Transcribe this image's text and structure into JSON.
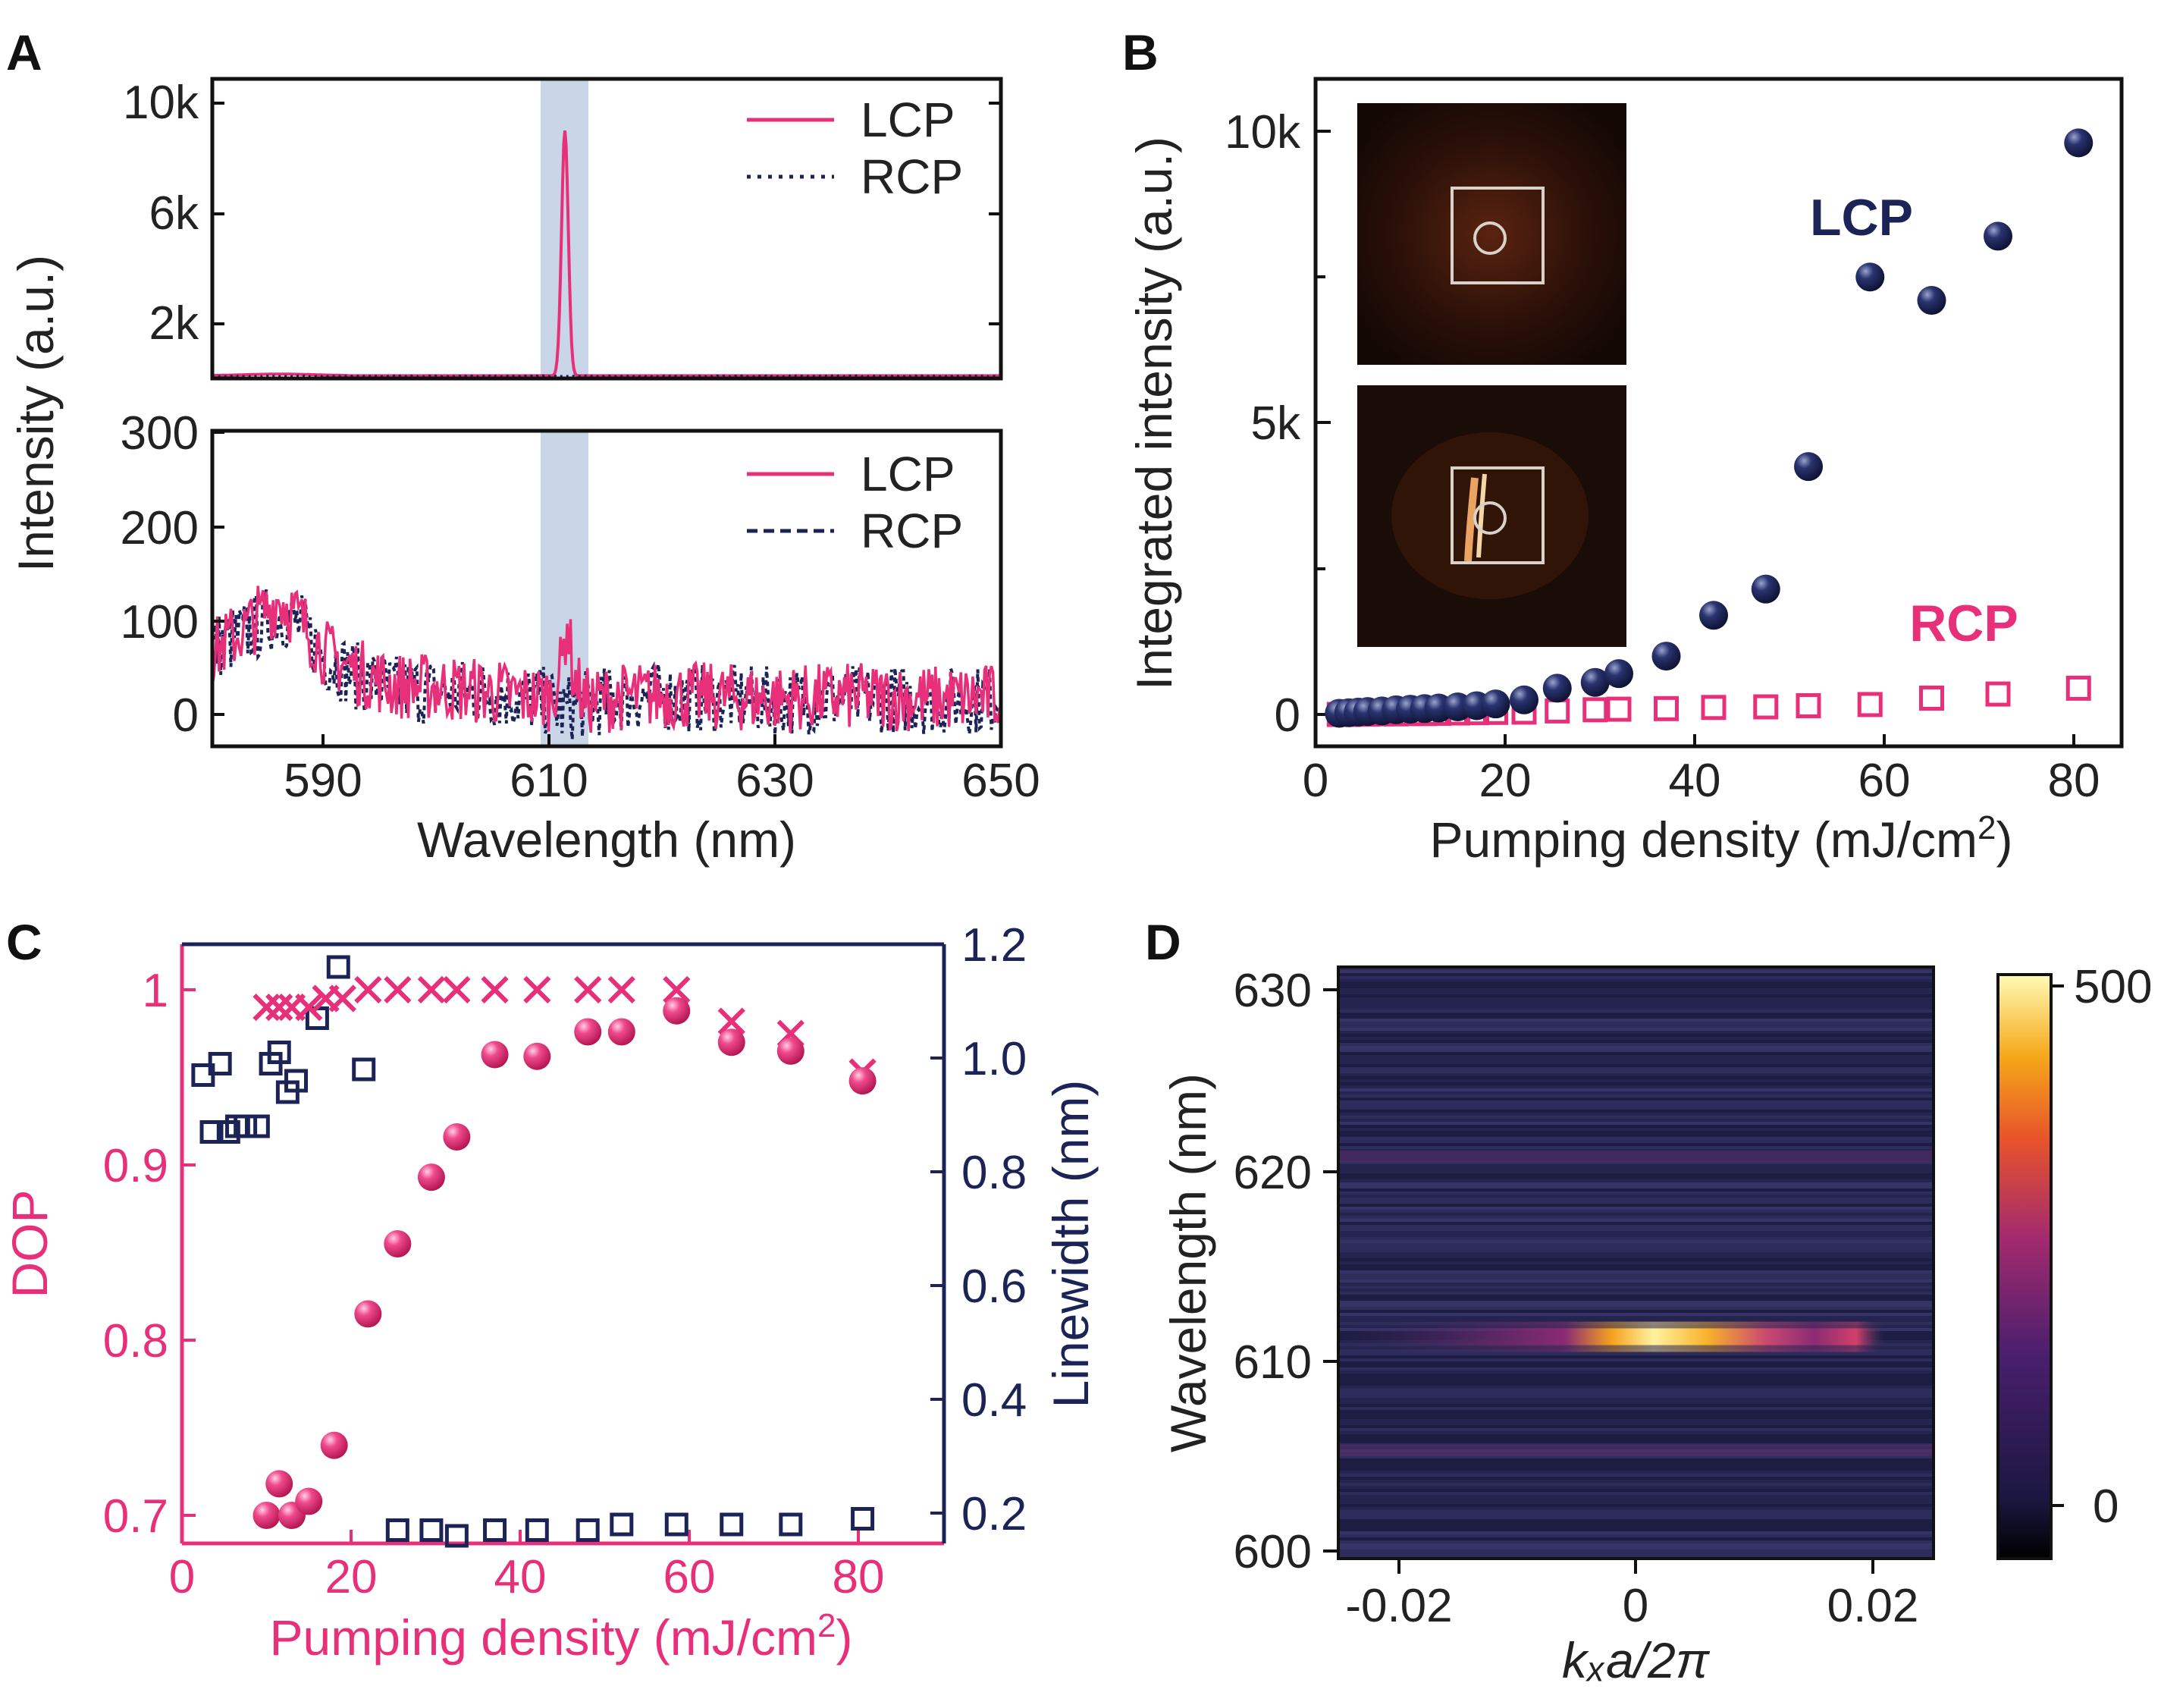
{
  "panels": {
    "A": {
      "letter": "A",
      "ylabel": "Intensity (a.u.)",
      "xlabel": "Wavelength (nm)",
      "x_ticks": [
        "590",
        "610",
        "630",
        "650"
      ],
      "top_y_ticks": [
        "10k",
        "6k",
        "2k"
      ],
      "bottom_y_ticks": [
        "300",
        "200",
        "100",
        "0"
      ],
      "legend_lcp": "LCP",
      "legend_rcp": "RCP"
    },
    "B": {
      "letter": "B",
      "ylabel": "Integrated intensity (a.u.)",
      "xlabel_main": "Pumping density (mJ/cm",
      "xlabel_sup": "2",
      "xlabel_end": ")",
      "x_ticks": [
        "0",
        "20",
        "40",
        "60",
        "80"
      ],
      "y_ticks": [
        "10k",
        "5k",
        "0"
      ],
      "label_lcp": "LCP",
      "label_rcp": "RCP"
    },
    "C": {
      "letter": "C",
      "ylabel_left": "DOP",
      "ylabel_right": "Linewidth (nm)",
      "xlabel_main": "Pumping density (mJ/cm",
      "xlabel_sup": "2",
      "xlabel_end": ")",
      "x_ticks": [
        "0",
        "20",
        "40",
        "60",
        "80"
      ],
      "left_ticks": [
        "1",
        "0.9",
        "0.8",
        "0.7"
      ],
      "right_ticks": [
        "1.2",
        "1.0",
        "0.8",
        "0.6",
        "0.4",
        "0.2"
      ]
    },
    "D": {
      "letter": "D",
      "ylabel": "Wavelength (nm)",
      "xlabel": "kₓa/2π",
      "x_ticks": [
        "-0.02",
        "0",
        "0.02"
      ],
      "y_ticks": [
        "630",
        "620",
        "610",
        "600"
      ],
      "colorbar_ticks": [
        "500",
        "0"
      ]
    }
  },
  "colors": {
    "lcp": "#e8307a",
    "rcp": "#1c2457",
    "highlight": "#c9d6e8",
    "dop": "#e8307a",
    "linewidth": "#1c2457"
  },
  "chart_data": [
    {
      "panel": "A-top",
      "type": "line",
      "xlabel": "Wavelength (nm)",
      "ylabel": "Intensity (a.u.)",
      "xlim": [
        580,
        650
      ],
      "ylim": [
        0,
        11000
      ],
      "highlight_band": [
        610,
        613
      ],
      "series": [
        {
          "name": "LCP",
          "style": "solid",
          "peak_center": 611.3,
          "peak_height": 9000,
          "peak_fwhm": 0.7,
          "baseline": 100
        },
        {
          "name": "RCP",
          "style": "dotted",
          "baseline": 60
        }
      ]
    },
    {
      "panel": "A-bottom",
      "type": "line",
      "xlabel": "Wavelength (nm)",
      "ylabel": "Intensity (a.u.)",
      "xlim": [
        580,
        650
      ],
      "ylim": [
        -20,
        300
      ],
      "highlight_band": [
        610,
        613
      ],
      "series": [
        {
          "name": "LCP",
          "style": "solid",
          "x": [
            580,
            583,
            586,
            588,
            590,
            593,
            596,
            600,
            605,
            608,
            610,
            611,
            611.5,
            612,
            613,
            616,
            620,
            625,
            630,
            635,
            640,
            645,
            650
          ],
          "y": [
            75,
            100,
            130,
            105,
            75,
            55,
            42,
            40,
            35,
            30,
            30,
            60,
            110,
            55,
            25,
            30,
            32,
            30,
            28,
            30,
            30,
            28,
            30
          ]
        },
        {
          "name": "RCP",
          "style": "dashed",
          "x": [
            580,
            583,
            586,
            588,
            590,
            593,
            596,
            600,
            605,
            608,
            610,
            611,
            612,
            613,
            616,
            620,
            625,
            630,
            635,
            640,
            645,
            650
          ],
          "y": [
            80,
            95,
            115,
            100,
            70,
            50,
            38,
            36,
            33,
            28,
            25,
            15,
            20,
            22,
            28,
            30,
            28,
            26,
            28,
            28,
            26,
            28
          ]
        }
      ]
    },
    {
      "panel": "B",
      "type": "scatter",
      "xlabel": "Pumping density (mJ/cm2)",
      "ylabel": "Integrated intensity (a.u.)",
      "xlim": [
        0,
        85
      ],
      "ylim": [
        -600,
        11000
      ],
      "series": [
        {
          "name": "LCP",
          "marker": "sphere",
          "x": [
            2.5,
            3.5,
            4.5,
            5.5,
            7,
            8.5,
            10,
            11.5,
            13,
            15,
            17,
            19,
            22,
            25.5,
            29.5,
            32,
            37,
            42,
            47.5,
            52,
            58.5,
            65,
            72,
            80.5
          ],
          "y": [
            20,
            30,
            40,
            50,
            60,
            80,
            90,
            100,
            110,
            130,
            150,
            180,
            250,
            450,
            550,
            700,
            1000,
            1700,
            2150,
            4250,
            7500,
            7100,
            8200,
            9800
          ]
        },
        {
          "name": "RCP",
          "marker": "square",
          "x": [
            2.5,
            3.5,
            4.5,
            5.5,
            7,
            8.5,
            10,
            11.5,
            13,
            15,
            17,
            19,
            22,
            25.5,
            29.5,
            32,
            37,
            42,
            47.5,
            52,
            58.5,
            65,
            72,
            80.5
          ],
          "y": [
            0,
            0,
            5,
            5,
            10,
            10,
            15,
            15,
            20,
            25,
            30,
            35,
            40,
            60,
            80,
            90,
            100,
            120,
            130,
            150,
            170,
            280,
            350,
            450
          ]
        }
      ]
    },
    {
      "panel": "C",
      "type": "scatter",
      "xlabel": "Pumping density (mJ/cm2)",
      "ylabel_left": "DOP",
      "ylabel_right": "Linewidth (nm)",
      "xlim": [
        0,
        90
      ],
      "ylim_left": [
        0.68,
        1.02
      ],
      "ylim_right": [
        0.1,
        1.2
      ],
      "series": [
        {
          "name": "DOP (spheres)",
          "axis": "left",
          "marker": "sphere",
          "x": [
            10,
            11.5,
            13,
            15,
            18,
            22,
            25.5,
            29.5,
            32.5,
            37,
            42,
            48,
            52,
            58.5,
            65,
            72,
            80.5
          ],
          "y": [
            0.7,
            0.718,
            0.7,
            0.708,
            0.74,
            0.815,
            0.855,
            0.893,
            0.916,
            0.963,
            0.962,
            0.976,
            0.976,
            0.988,
            0.97,
            0.965,
            0.948
          ]
        },
        {
          "name": "DOP (crosses)",
          "axis": "left",
          "marker": "cross",
          "x": [
            10,
            11.5,
            13,
            15,
            17,
            19,
            22,
            25.5,
            29.5,
            32.5,
            37,
            42,
            48,
            52,
            58.5,
            65,
            72,
            80.5
          ],
          "y": [
            0.99,
            0.99,
            0.99,
            0.99,
            0.995,
            0.995,
            1.0,
            1.0,
            1.0,
            1.0,
            1.0,
            1.0,
            1.0,
            1.0,
            1.0,
            0.982,
            0.975,
            0.953
          ]
        },
        {
          "name": "Linewidth",
          "axis": "right",
          "marker": "open-square",
          "x": [
            2.5,
            3.5,
            4.5,
            5.5,
            6.5,
            7.5,
            9,
            10.5,
            11.5,
            12.5,
            13.5,
            16,
            18.5,
            21.5,
            25.5,
            29.5,
            32.5,
            37,
            42,
            48,
            52,
            58.5,
            65,
            72,
            80.5
          ],
          "y": [
            0.97,
            0.87,
            0.99,
            0.87,
            0.88,
            0.88,
            0.88,
            0.99,
            1.01,
            0.94,
            0.96,
            1.07,
            1.16,
            0.98,
            0.17,
            0.17,
            0.16,
            0.17,
            0.17,
            0.17,
            0.18,
            0.18,
            0.18,
            0.18,
            0.19
          ]
        }
      ]
    },
    {
      "panel": "D",
      "type": "heatmap",
      "xlabel": "kₓa/2π",
      "ylabel": "Wavelength (nm)",
      "xlim": [
        -0.025,
        0.025
      ],
      "ylim": [
        600,
        630
      ],
      "colorbar_range": [
        -50,
        520
      ],
      "features": [
        {
          "wavelength": 611.3,
          "k_from": -0.004,
          "k_to": 0.017,
          "peak_k": 0.003,
          "intensity": 500
        },
        {
          "wavelength": 620.8,
          "intensity": 60
        },
        {
          "wavelength": 605.3,
          "intensity": 55
        }
      ]
    }
  ]
}
